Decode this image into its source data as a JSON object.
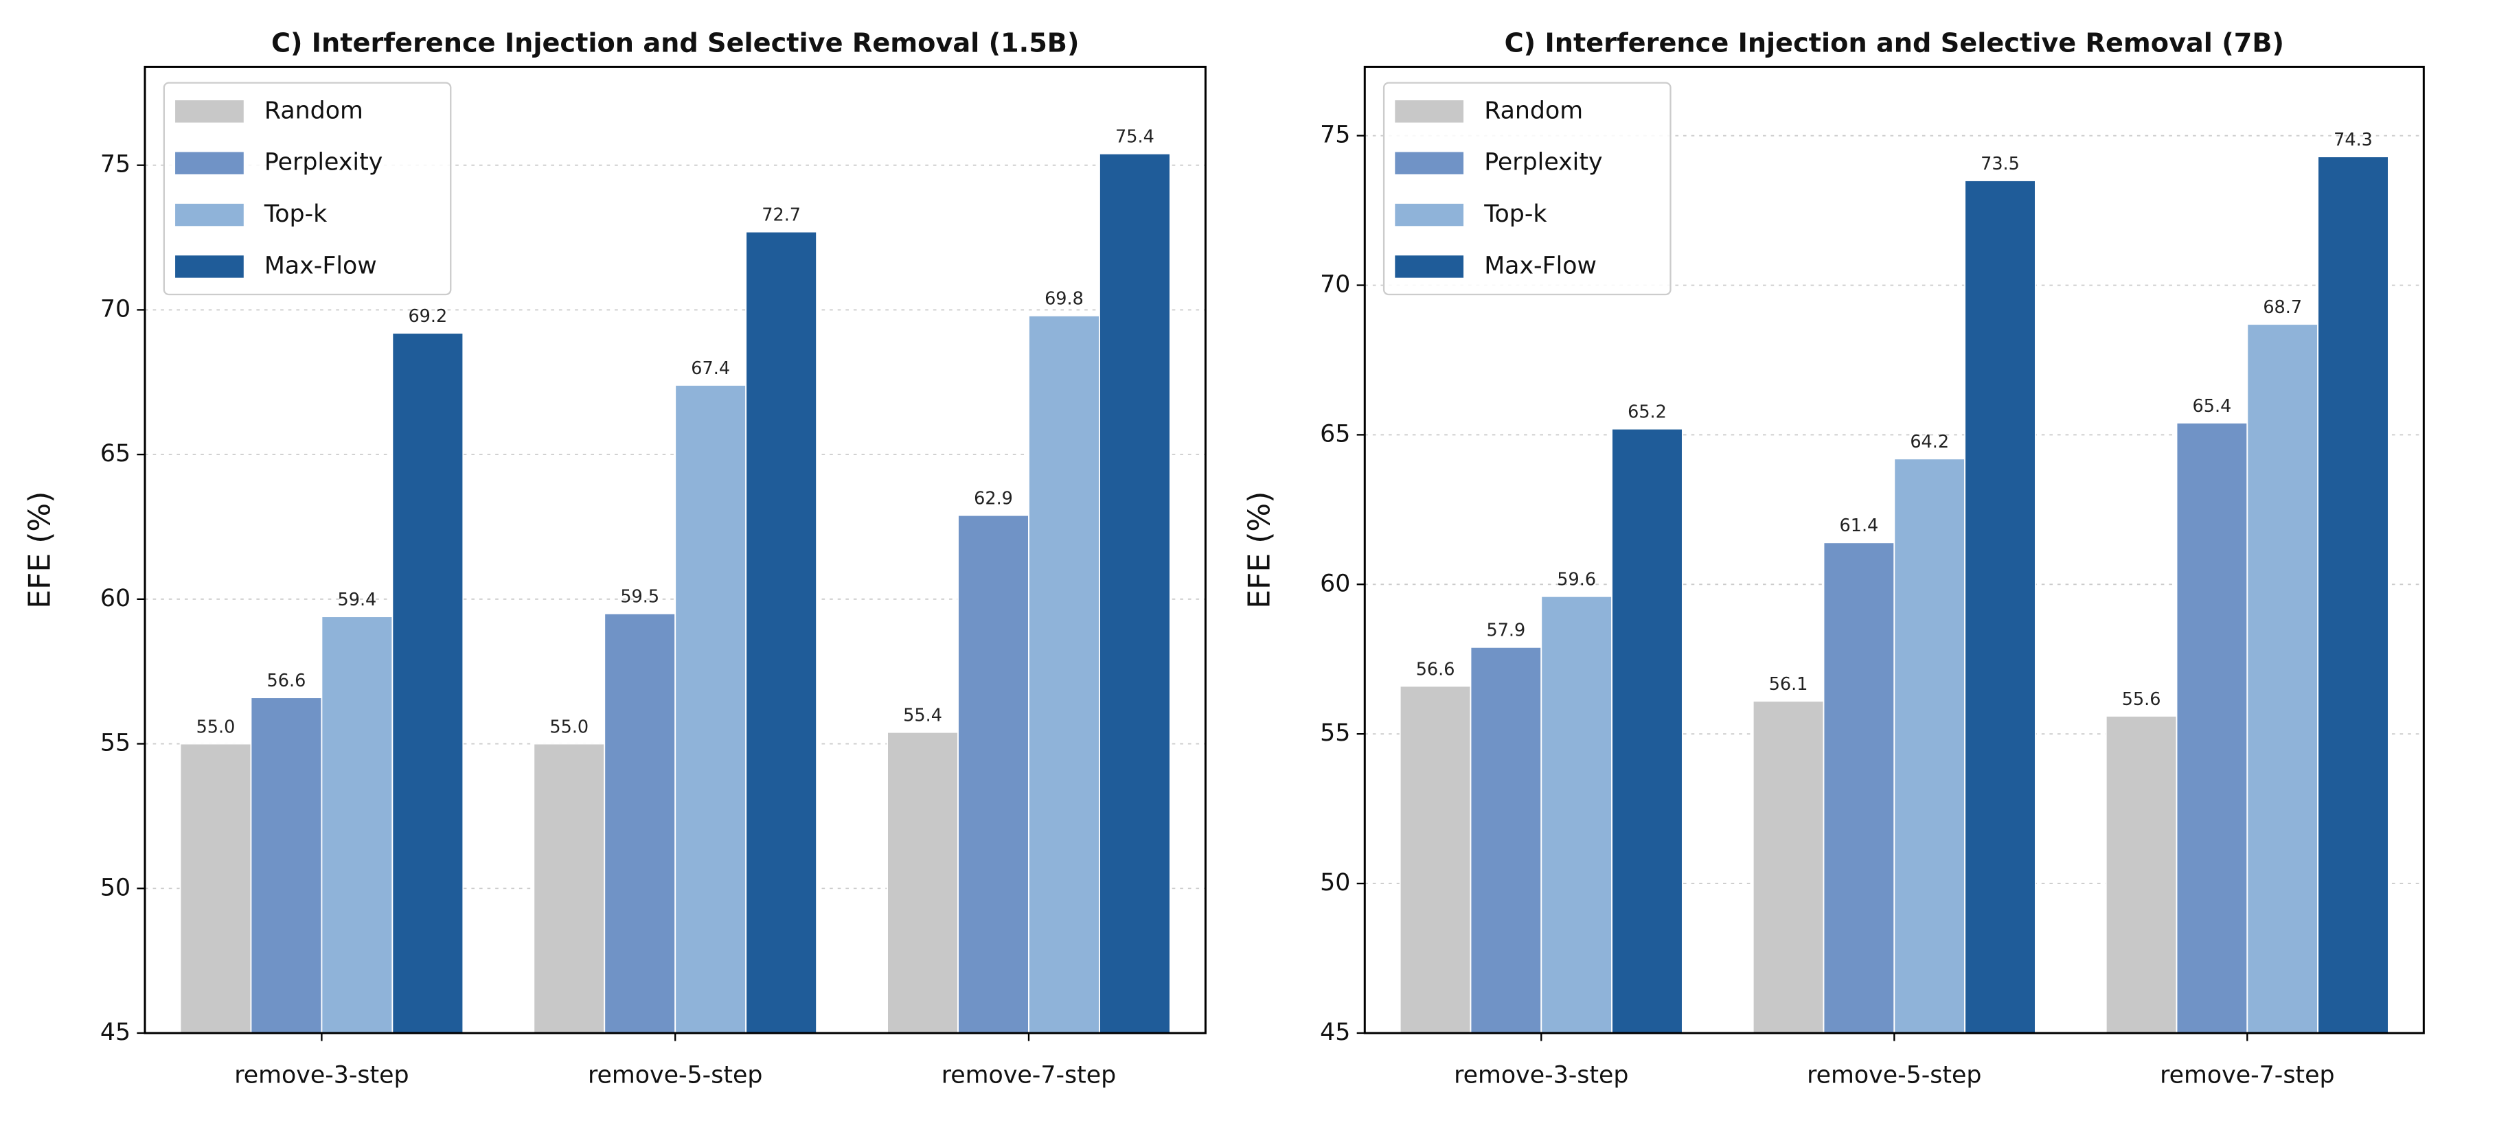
{
  "chart_data": [
    {
      "type": "bar",
      "title": "C) Interference Injection and Selective Removal (1.5B)",
      "y_label": "EFE (%)",
      "categories": [
        "remove-3-step",
        "remove-5-step",
        "remove-7-step"
      ],
      "series": [
        {
          "name": "Random",
          "color": "#c8c8c8",
          "values": [
            55.0,
            55.0,
            55.4
          ],
          "value_labels": [
            "55.0",
            "55.0",
            "55.4"
          ]
        },
        {
          "name": "Perplexity",
          "color": "#7093c6",
          "values": [
            56.6,
            59.5,
            62.9
          ],
          "value_labels": [
            "56.6",
            "59.5",
            "62.9"
          ]
        },
        {
          "name": "Top-k",
          "color": "#8fb3d9",
          "values": [
            59.4,
            67.4,
            69.8
          ],
          "value_labels": [
            "59.4",
            "67.4",
            "69.8"
          ]
        },
        {
          "name": "Max-Flow",
          "color": "#1f5c99",
          "values": [
            69.2,
            72.7,
            75.4
          ],
          "value_labels": [
            "69.2",
            "72.7",
            "75.4"
          ]
        }
      ],
      "ylim": [
        45,
        78.4
      ],
      "yticks": [
        45,
        50,
        55,
        60,
        65,
        70,
        75
      ],
      "grid": true,
      "legend": "upper-left"
    },
    {
      "type": "bar",
      "title": "C) Interference Injection and Selective Removal (7B)",
      "y_label": "EFE (%)",
      "categories": [
        "remove-3-step",
        "remove-5-step",
        "remove-7-step"
      ],
      "series": [
        {
          "name": "Random",
          "color": "#c8c8c8",
          "values": [
            56.6,
            56.1,
            55.6
          ],
          "value_labels": [
            "56.6",
            "56.1",
            "55.6"
          ]
        },
        {
          "name": "Perplexity",
          "color": "#7093c6",
          "values": [
            57.9,
            61.4,
            65.4
          ],
          "value_labels": [
            "57.9",
            "61.4",
            "65.4"
          ]
        },
        {
          "name": "Top-k",
          "color": "#8fb3d9",
          "values": [
            59.6,
            64.2,
            68.7
          ],
          "value_labels": [
            "59.6",
            "64.2",
            "68.7"
          ]
        },
        {
          "name": "Max-Flow",
          "color": "#1f5c99",
          "values": [
            65.2,
            73.5,
            74.3
          ],
          "value_labels": [
            "65.2",
            "73.5",
            "74.3"
          ]
        }
      ],
      "ylim": [
        45,
        77.3
      ],
      "yticks": [
        45,
        50,
        55,
        60,
        65,
        70,
        75
      ],
      "grid": true,
      "legend": "upper-left"
    }
  ]
}
